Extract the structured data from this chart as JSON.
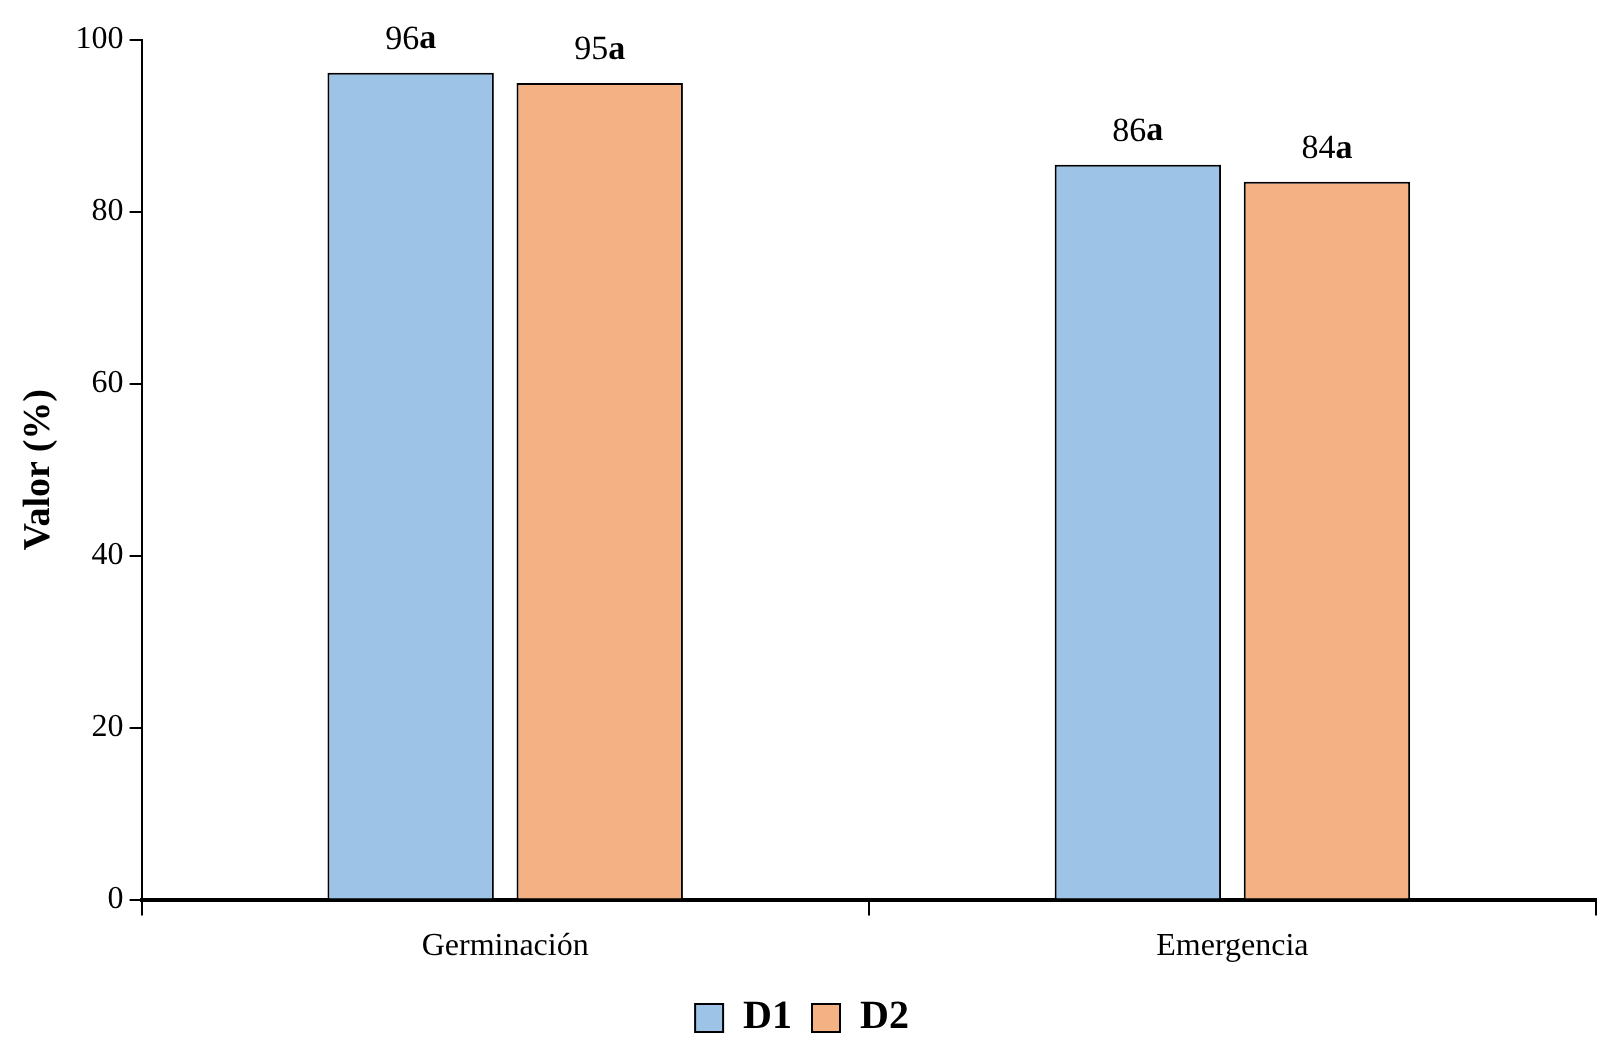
{
  "chart_data": {
    "type": "bar",
    "ylabel": "Valor (%)",
    "categories": [
      "Germinación",
      "Emergencia"
    ],
    "series": [
      {
        "name": "D1",
        "color": "#9dc3e6",
        "values": [
          96.2,
          85.5
        ],
        "value_labels": [
          "96a",
          "86a"
        ]
      },
      {
        "name": "D2",
        "color": "#f4b183",
        "values": [
          95,
          83.5
        ],
        "value_labels": [
          "95a",
          "84a"
        ]
      }
    ],
    "ylim": [
      0,
      100
    ],
    "yticks": [
      0,
      20,
      40,
      60,
      80,
      100
    ],
    "grid": false,
    "legend": "bottom"
  }
}
